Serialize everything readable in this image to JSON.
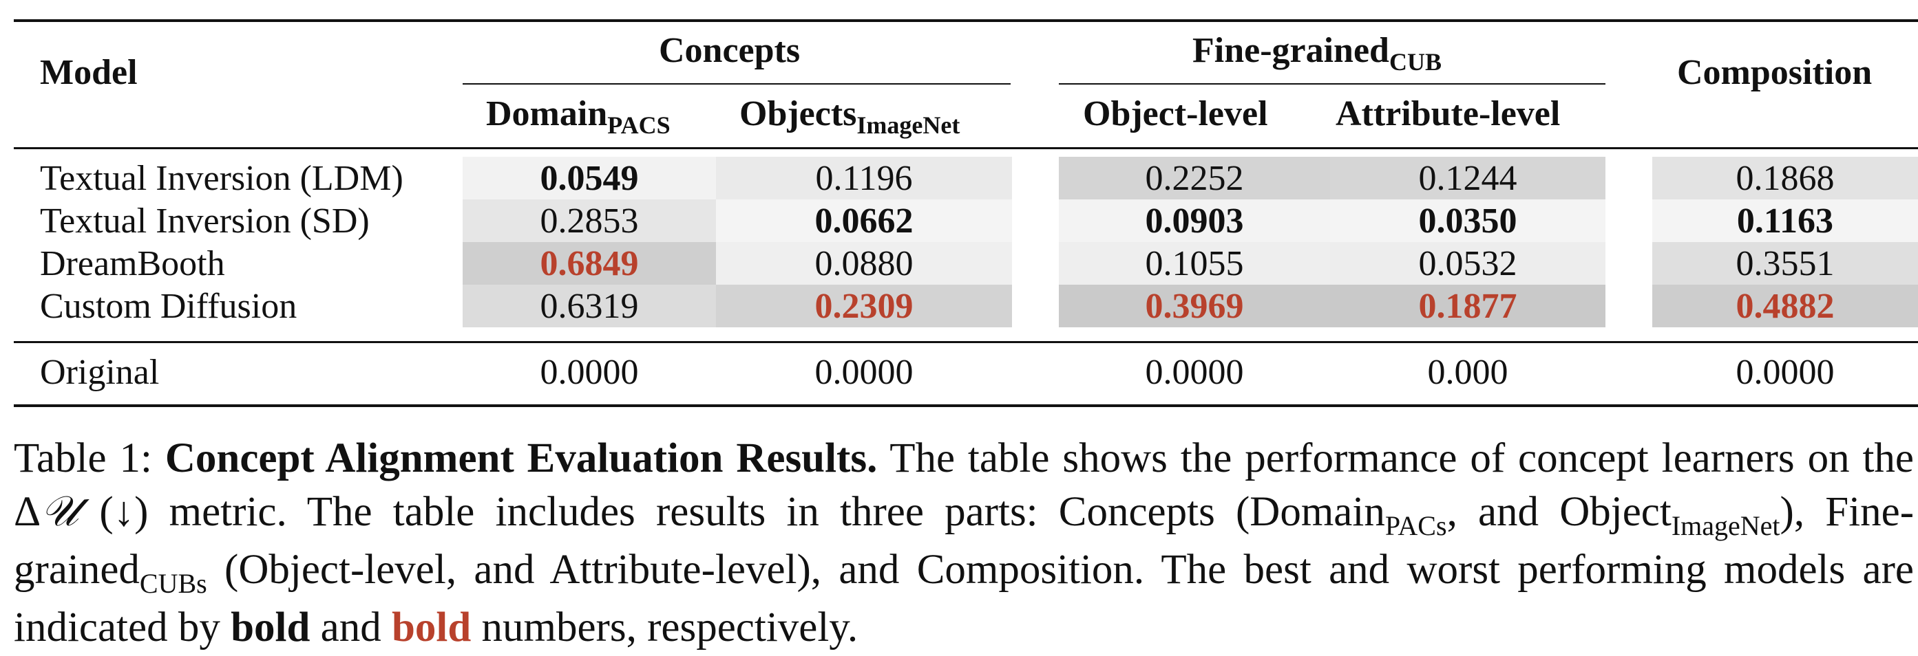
{
  "header": {
    "model": "Model",
    "concepts": "Concepts",
    "finegrained_main": "Fine-grained",
    "finegrained_sub": "CUB",
    "composition": "Composition",
    "domain_main": "Domain",
    "domain_sub": "PACS",
    "objects_main": "Objects",
    "objects_sub": "ImageNet",
    "object_level": "Object-level",
    "attribute_level": "Attribute-level"
  },
  "rows": [
    {
      "model": "Textual Inversion (LDM)",
      "values": [
        "0.0549",
        "0.1196",
        "0.2252",
        "0.1244",
        "0.1868"
      ],
      "styles": [
        "best",
        "",
        "",
        "",
        ""
      ]
    },
    {
      "model": "Textual Inversion (SD)",
      "values": [
        "0.2853",
        "0.0662",
        "0.0903",
        "0.0350",
        "0.1163"
      ],
      "styles": [
        "",
        "best",
        "best",
        "best",
        "best"
      ]
    },
    {
      "model": "DreamBooth",
      "values": [
        "0.6849",
        "0.0880",
        "0.1055",
        "0.0532",
        "0.3551"
      ],
      "styles": [
        "worst",
        "",
        "",
        "",
        ""
      ]
    },
    {
      "model": "Custom Diffusion",
      "values": [
        "0.6319",
        "0.2309",
        "0.3969",
        "0.1877",
        "0.4882"
      ],
      "styles": [
        "",
        "worst",
        "worst",
        "worst",
        "worst"
      ]
    }
  ],
  "original": {
    "model": "Original",
    "values": [
      "0.0000",
      "0.0000",
      "0.0000",
      "0.000",
      "0.0000"
    ]
  },
  "shading": {
    "best_color": "#b8412c",
    "levels": [
      [
        "#f2f2f2",
        "#eaeaea",
        "#d4d4d4",
        "#d6d6d6",
        "#e3e3e3"
      ],
      [
        "#e6e6e6",
        "#f4f4f4",
        "#f3f3f3",
        "#f4f4f4",
        "#f4f4f4"
      ],
      [
        "#cfcfcf",
        "#efefef",
        "#eeeeee",
        "#ededed",
        "#dfdfdf"
      ],
      [
        "#dcdcdc",
        "#d3d3d3",
        "#cacaca",
        "#c9c9c9",
        "#cdcdcd"
      ]
    ]
  },
  "caption": {
    "label": "Table 1:",
    "title": "Concept Alignment Evaluation Results.",
    "s1": "The table shows the performance of concept learners on the",
    "metric_delta": "Δ",
    "metric_u": "𝒰",
    "metric_arrow": "(↓)",
    "s2": "metric. The table includes results in three parts: Concepts (Domain",
    "sub_pacs": "PACs",
    "s3": ", and Object",
    "sub_imagenet": "ImageNet",
    "s4": "), Fine-grained",
    "sub_cubs": "CUBs",
    "s5": "(Object-level, and Attribute-level), and Composition. The best and worst performing models are indicated by",
    "bold1": "bold",
    "and": "and",
    "bold2": "bold",
    "s6": "numbers, respectively."
  }
}
